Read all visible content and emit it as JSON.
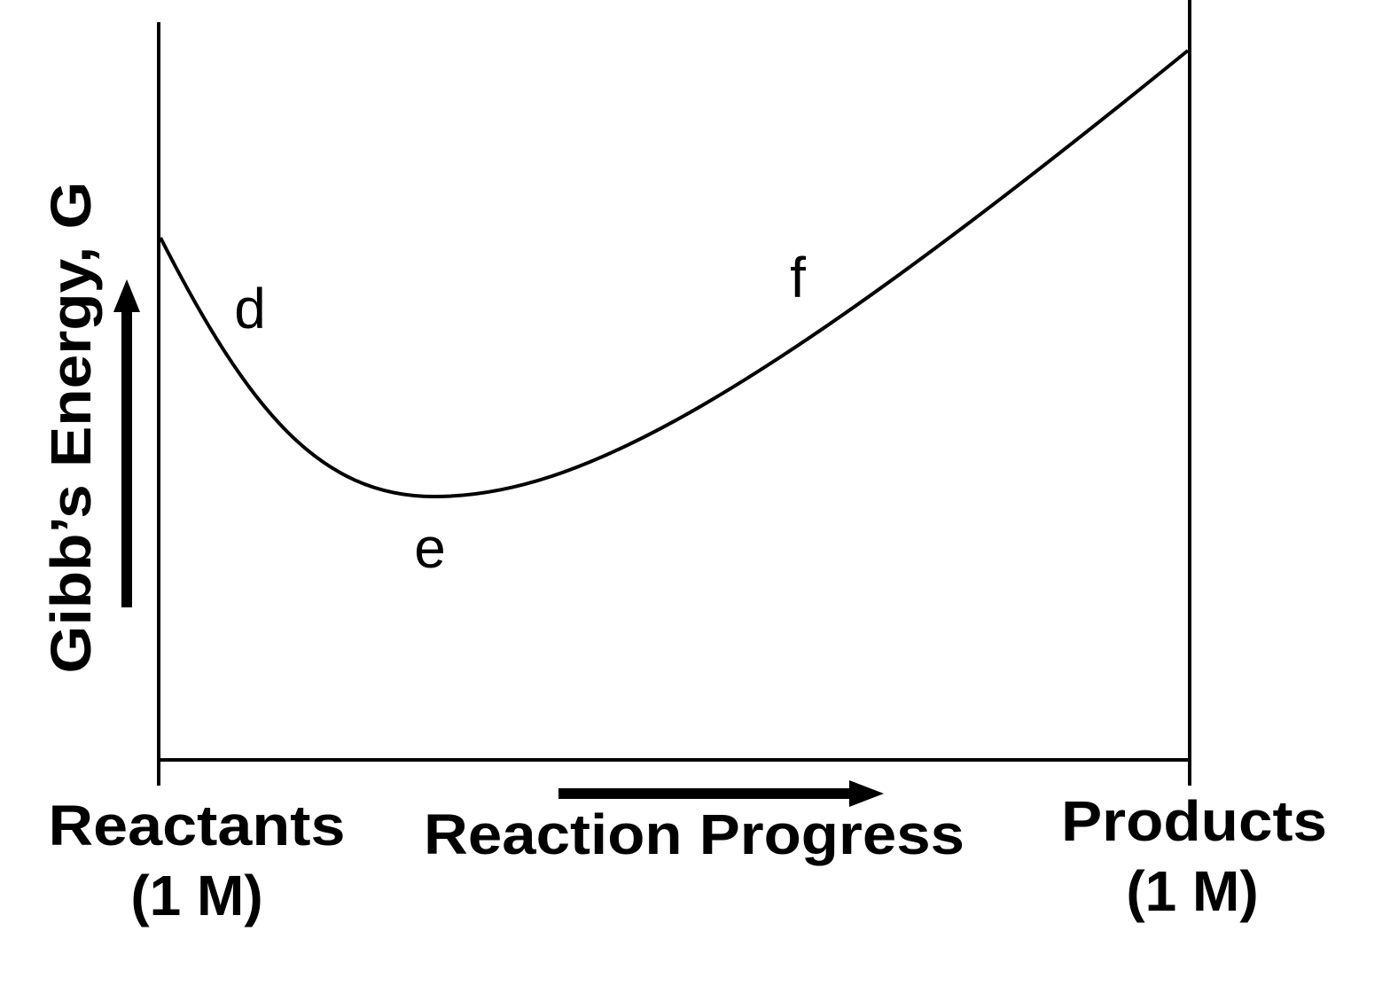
{
  "y_axis_label": "Gibb’s Energy, G",
  "x_axis_label": "Reaction Progress",
  "left_end": {
    "name": "Reactants",
    "concentration": "(1 M)"
  },
  "right_end": {
    "name": "Products",
    "concentration": "(1 M)"
  },
  "curve_points": [
    "d",
    "e",
    "f"
  ]
}
